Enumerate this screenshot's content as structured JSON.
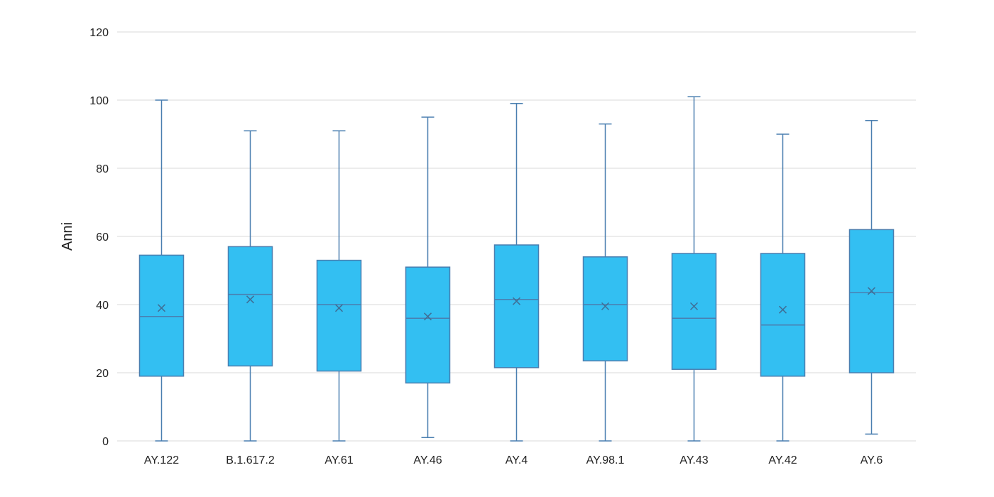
{
  "chart_data": {
    "type": "box",
    "title": "",
    "xlabel": "",
    "ylabel": "Anni",
    "ylim": [
      0,
      120
    ],
    "yticks": [
      "0",
      "20",
      "40",
      "60",
      "80",
      "100",
      "120"
    ],
    "grid": true,
    "legend": "none",
    "box_color": "#33BFF2",
    "line_color": "#4A7FB0",
    "categories": [
      "AY.122",
      "B.1.617.2",
      "AY.61",
      "AY.46",
      "AY.4",
      "AY.98.1",
      "AY.43",
      "AY.42",
      "AY.6"
    ],
    "boxes": [
      {
        "min": 0,
        "q1": 19,
        "median": 36.5,
        "q3": 54.5,
        "max": 100,
        "mean": 39
      },
      {
        "min": 0,
        "q1": 22,
        "median": 43,
        "q3": 57,
        "max": 91,
        "mean": 41.5
      },
      {
        "min": 0,
        "q1": 20.5,
        "median": 40,
        "q3": 53,
        "max": 91,
        "mean": 39
      },
      {
        "min": 1,
        "q1": 17,
        "median": 36,
        "q3": 51,
        "max": 95,
        "mean": 36.5
      },
      {
        "min": 0,
        "q1": 21.5,
        "median": 41.5,
        "q3": 57.5,
        "max": 99,
        "mean": 41
      },
      {
        "min": 0,
        "q1": 23.5,
        "median": 40,
        "q3": 54,
        "max": 93,
        "mean": 39.5
      },
      {
        "min": 0,
        "q1": 21,
        "median": 36,
        "q3": 55,
        "max": 101,
        "mean": 39.5
      },
      {
        "min": 0,
        "q1": 19,
        "median": 34,
        "q3": 55,
        "max": 90,
        "mean": 38.5
      },
      {
        "min": 2,
        "q1": 20,
        "median": 43.5,
        "q3": 62,
        "max": 94,
        "mean": 44
      }
    ]
  }
}
